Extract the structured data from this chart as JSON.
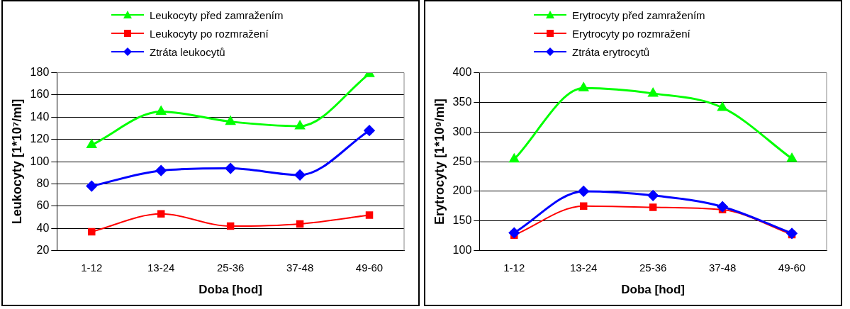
{
  "chart_data": [
    {
      "type": "line",
      "categories": [
        "1-12",
        "13-24",
        "25-36",
        "37-48",
        "49-60"
      ],
      "xlabel": "Doba [hod]",
      "ylabel": "Leukocyty [1*10⁷/ml]",
      "ylim": [
        20,
        180
      ],
      "yticks": [
        20,
        40,
        60,
        80,
        100,
        120,
        140,
        160,
        180
      ],
      "grid": "y",
      "legend": "top",
      "series": [
        {
          "name": "Leukocyty před zamražením",
          "color": "#00ff00",
          "marker": "triangle",
          "values": [
            115,
            145,
            136,
            132,
            179
          ]
        },
        {
          "name": "Leukocyty po rozmražení",
          "color": "#ff0000",
          "marker": "square",
          "values": [
            37,
            53,
            42,
            44,
            52
          ]
        },
        {
          "name": "Ztráta leukocytů",
          "color": "#0000ff",
          "marker": "diamond",
          "values": [
            78,
            92,
            94,
            88,
            128
          ]
        }
      ]
    },
    {
      "type": "line",
      "categories": [
        "1-12",
        "13-24",
        "25-36",
        "37-48",
        "49-60"
      ],
      "xlabel": "Doba [hod]",
      "ylabel": "Erytrocyty [1*10⁹/ml]",
      "ylim": [
        100,
        400
      ],
      "yticks": [
        100,
        150,
        200,
        250,
        300,
        350,
        400
      ],
      "grid": "y",
      "legend": "top",
      "series": [
        {
          "name": "Erytrocyty před zamražením",
          "color": "#00ff00",
          "marker": "triangle",
          "values": [
            254,
            374,
            365,
            341,
            255
          ]
        },
        {
          "name": "Erytrocyty po rozmražení",
          "color": "#ff0000",
          "marker": "square",
          "values": [
            126,
            175,
            173,
            169,
            127
          ]
        },
        {
          "name": "Ztráta erytrocytů",
          "color": "#0000ff",
          "marker": "diamond",
          "values": [
            130,
            200,
            193,
            174,
            129
          ]
        }
      ]
    }
  ]
}
